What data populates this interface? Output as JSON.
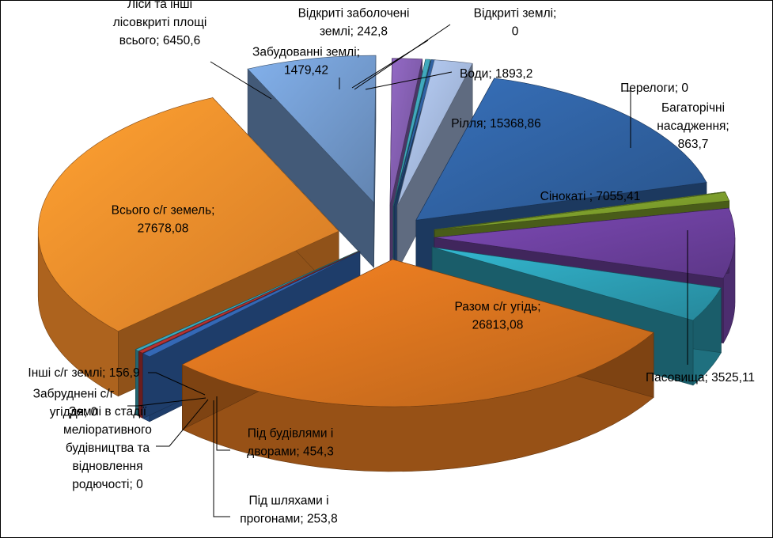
{
  "chart_data": {
    "type": "pie",
    "title": "",
    "categories": [
      "Рілля",
      "Перелоги",
      "Багаторічні насадження",
      "Сінокати",
      "Пасовища",
      "Разом с/г угідь",
      "Під будівлями і дворами",
      "Під шляхами і прогонами",
      "Землі в стадії меліоративного будівництва та відновлення родючості",
      "Забруднені с/г угіддя",
      "Інші с/г землі",
      "Всього с/г земель",
      "Ліси та інші лісовкриті площі всього",
      "Забудованні землі",
      "Відкриті заболочені землі",
      "Відкриті землі",
      "Води"
    ],
    "values": [
      15368.86,
      0,
      863.7,
      7055.41,
      3525.11,
      26813.08,
      454.3,
      253.8,
      0,
      0,
      156.9,
      27678.08,
      6450.6,
      1479.42,
      242.8,
      0,
      1893.2
    ],
    "data_labels": [
      [
        "Рілля; 15368,86"
      ],
      [
        "Перелоги; 0"
      ],
      [
        "Багаторічні",
        "насадження;",
        "863,7"
      ],
      [
        "Сінокаті ; 7055,41"
      ],
      [
        "Пасовища; 3525,11"
      ],
      [
        "Разом с/г угідь;",
        "26813,08"
      ],
      [
        "Під будівлями і",
        "дворами; 454,3"
      ],
      [
        "Під шляхами і",
        "прогонами; 253,8"
      ],
      [
        "Землі в стадії",
        "меліоративного",
        "будівництва та",
        "відновлення",
        "родючості; 0"
      ],
      [
        "Забруднені с/г",
        "угіддя; 0"
      ],
      [
        "Інші с/г землі; 156,9"
      ],
      [
        "Всього с/г земель;",
        "27678,08"
      ],
      [
        "Ліси та інші",
        "лісовкриті площі",
        "всього; 6450,6"
      ],
      [
        "Забудованні землі;",
        "1479,42"
      ],
      [
        "Відкриті заболочені",
        "землі; 242,8"
      ],
      [
        "Відкриті землі;",
        "0"
      ],
      [
        "Води; 1893,2"
      ]
    ],
    "colors": [
      "#2f5f9e",
      "#86b33a",
      "#7a9a2a",
      "#6a3f9a",
      "#2b9bb0",
      "#d2701e",
      "#3265b0",
      "#b03030",
      "#2f5f9e",
      "#7fb04a",
      "#3aa6b9",
      "#f0892a",
      "#6f96c8",
      "#7d5aa8",
      "#3ea3b6",
      "#2f5f9e",
      "#9fb3d6"
    ],
    "legend": "none",
    "style": "exploded 3D pie"
  }
}
